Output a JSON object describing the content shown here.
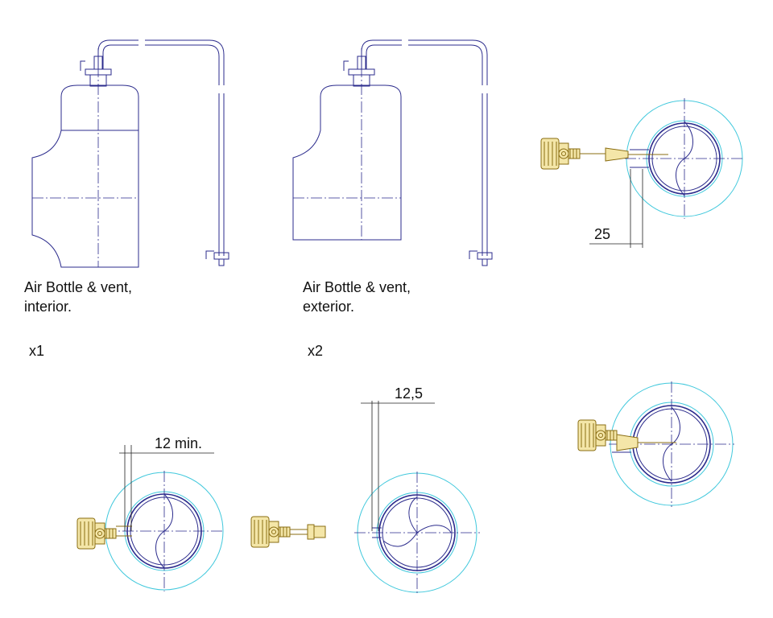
{
  "labels": {
    "interior_title_line1": "Air Bottle & vent,",
    "interior_title_line2": "interior.",
    "interior_qty": "x1",
    "exterior_title_line1": "Air Bottle & vent,",
    "exterior_title_line2": "exterior.",
    "exterior_qty": "x2"
  },
  "dimensions": {
    "top_right_offset": "25",
    "bottom_left_offset": "12 min.",
    "bottom_middle_offset": "12,5"
  },
  "colors": {
    "outline": "#2b2b8c",
    "clearance": "#40c8dc",
    "brass": "#8a6d12"
  }
}
